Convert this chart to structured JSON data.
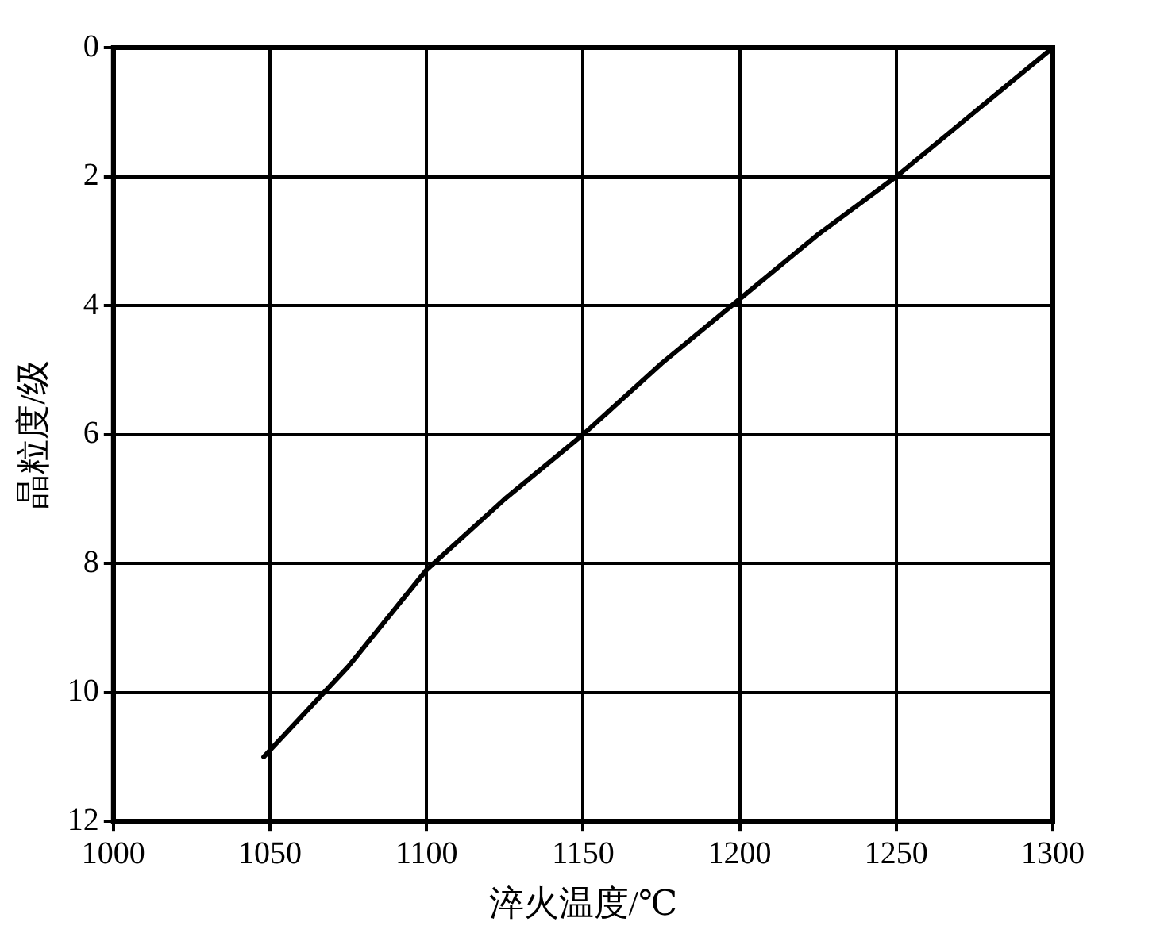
{
  "chart_data": {
    "type": "line",
    "xlabel": "淬火温度/℃",
    "ylabel": "晶粒度/级",
    "series": [
      {
        "color": "#000000",
        "x": [
          1048,
          1075,
          1100,
          1125,
          1150,
          1175,
          1200,
          1225,
          1250,
          1275,
          1300
        ],
        "values": [
          11,
          9.6,
          8.1,
          7,
          6,
          4.9,
          3.9,
          2.9,
          2,
          1,
          0
        ]
      }
    ],
    "xlim": [
      1000,
      1300
    ],
    "xticks": [
      1000,
      1050,
      1100,
      1150,
      1200,
      1250,
      1300
    ],
    "ylim": [
      12,
      0
    ],
    "yticks": [
      0,
      2,
      4,
      6,
      8,
      10,
      12
    ],
    "grid": true,
    "legend": false,
    "marker": "none",
    "line_style": "solid"
  }
}
